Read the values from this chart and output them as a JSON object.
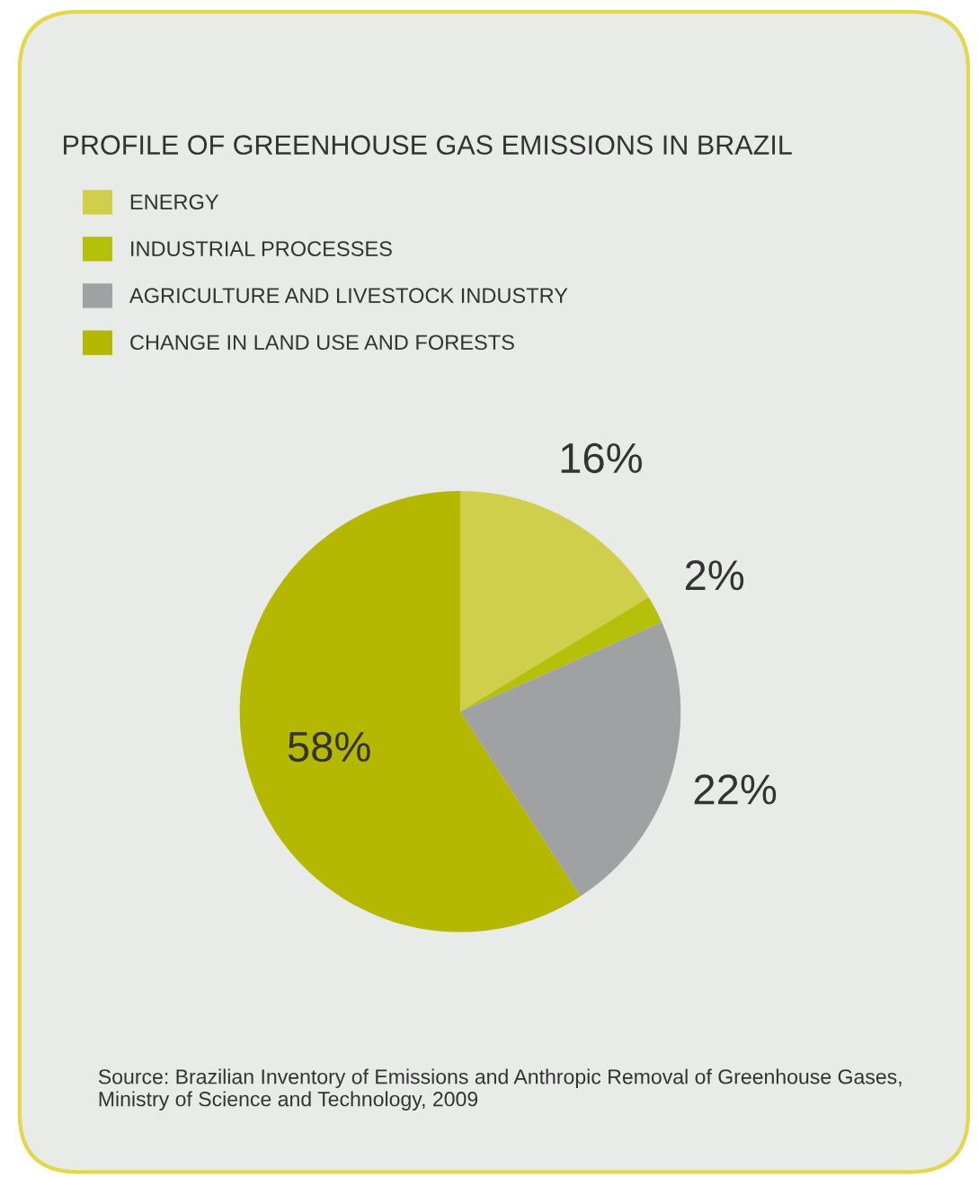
{
  "chart_data": {
    "type": "pie",
    "title": "PROFILE OF GREENHOUSE GAS EMISSIONS IN BRAZIL",
    "categories": [
      "ENERGY",
      "INDUSTRIAL PROCESSES",
      "AGRICULTURE AND LIVESTOCK INDUSTRY",
      "CHANGE IN LAND USE AND FORESTS"
    ],
    "values": [
      16,
      2,
      22,
      58
    ],
    "colors": [
      "#d0cf4c",
      "#b4c00a",
      "#a0a1a3",
      "#b4b800"
    ],
    "value_labels": [
      "16%",
      "2%",
      "22%",
      "58%"
    ],
    "legend": "top left",
    "annotations": [
      "Source: Brazilian Inventory of Emissions and Anthropic Removal of Greenhouse Gases, Ministry of Science and Technology, 2009"
    ]
  }
}
